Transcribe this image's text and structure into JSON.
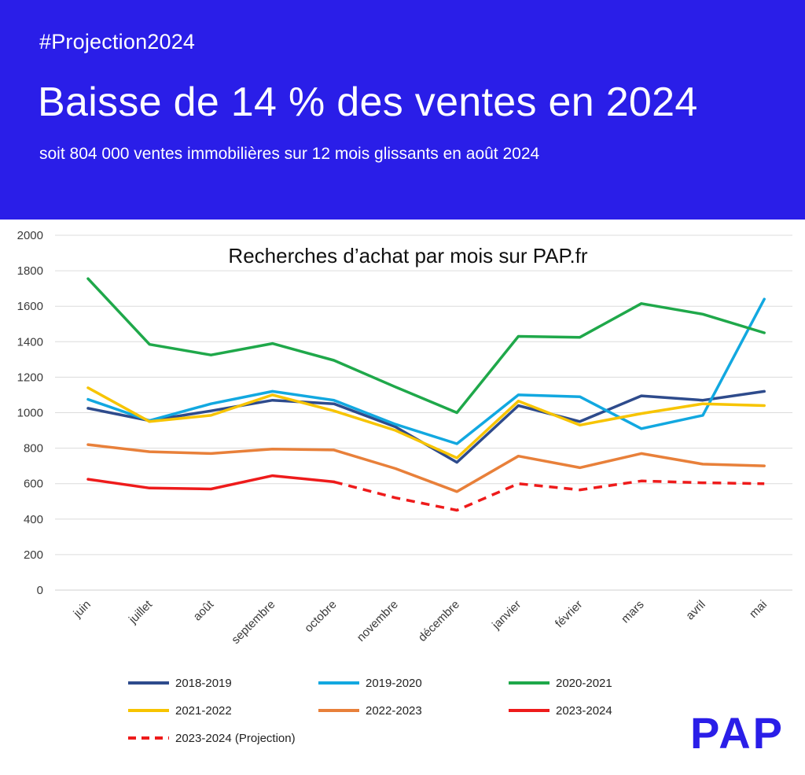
{
  "header": {
    "hashtag": "#Projection2024",
    "headline": "Baisse de 14 % des ventes en 2024",
    "subline": "soit 804 000 ventes immobilières sur 12 mois glissants en août 2024",
    "background_color": "#2a1ee8"
  },
  "brand": {
    "logo_text": "PAP",
    "color": "#2a1ee8"
  },
  "chart_data": {
    "type": "line",
    "title": "Recherches d’achat par mois sur PAP.fr",
    "xlabel": "",
    "ylabel": "",
    "ylim": [
      0,
      2000
    ],
    "yticks": [
      0,
      200,
      400,
      600,
      800,
      1000,
      1200,
      1400,
      1600,
      1800,
      2000
    ],
    "grid": true,
    "legend_position": "bottom",
    "categories": [
      "juin",
      "juillet",
      "août",
      "septembre",
      "octobre",
      "novembre",
      "décembre",
      "janvier",
      "février",
      "mars",
      "avril",
      "mai"
    ],
    "series": [
      {
        "name": "2018-2019",
        "color": "#2e4b8c",
        "dashed": false,
        "values": [
          1025,
          955,
          1010,
          1070,
          1050,
          920,
          720,
          1040,
          950,
          1095,
          1070,
          1120
        ]
      },
      {
        "name": "2019-2020",
        "color": "#12a8e0",
        "dashed": false,
        "values": [
          1075,
          955,
          1050,
          1120,
          1070,
          935,
          825,
          1100,
          1090,
          910,
          985,
          1640
        ]
      },
      {
        "name": "2020-2021",
        "color": "#1fa84a",
        "dashed": false,
        "values": [
          1755,
          1385,
          1325,
          1390,
          1295,
          1145,
          1000,
          1430,
          1425,
          1615,
          1555,
          1450
        ]
      },
      {
        "name": "2021-2022",
        "color": "#f7c400",
        "dashed": false,
        "values": [
          1140,
          950,
          985,
          1100,
          1010,
          900,
          745,
          1065,
          930,
          995,
          1050,
          1040
        ]
      },
      {
        "name": "2022-2023",
        "color": "#e8803a",
        "dashed": false,
        "values": [
          820,
          780,
          770,
          795,
          790,
          685,
          555,
          755,
          690,
          770,
          710,
          700
        ]
      },
      {
        "name": "2023-2024",
        "color": "#ee1b1b",
        "dashed": false,
        "values": [
          625,
          575,
          570,
          645,
          610,
          null,
          null,
          null,
          null,
          null,
          null,
          null
        ]
      },
      {
        "name": "2023-2024 (Projection)",
        "color": "#ee1b1b",
        "dashed": true,
        "values": [
          null,
          null,
          null,
          null,
          610,
          520,
          450,
          600,
          565,
          615,
          605,
          600
        ]
      }
    ]
  }
}
